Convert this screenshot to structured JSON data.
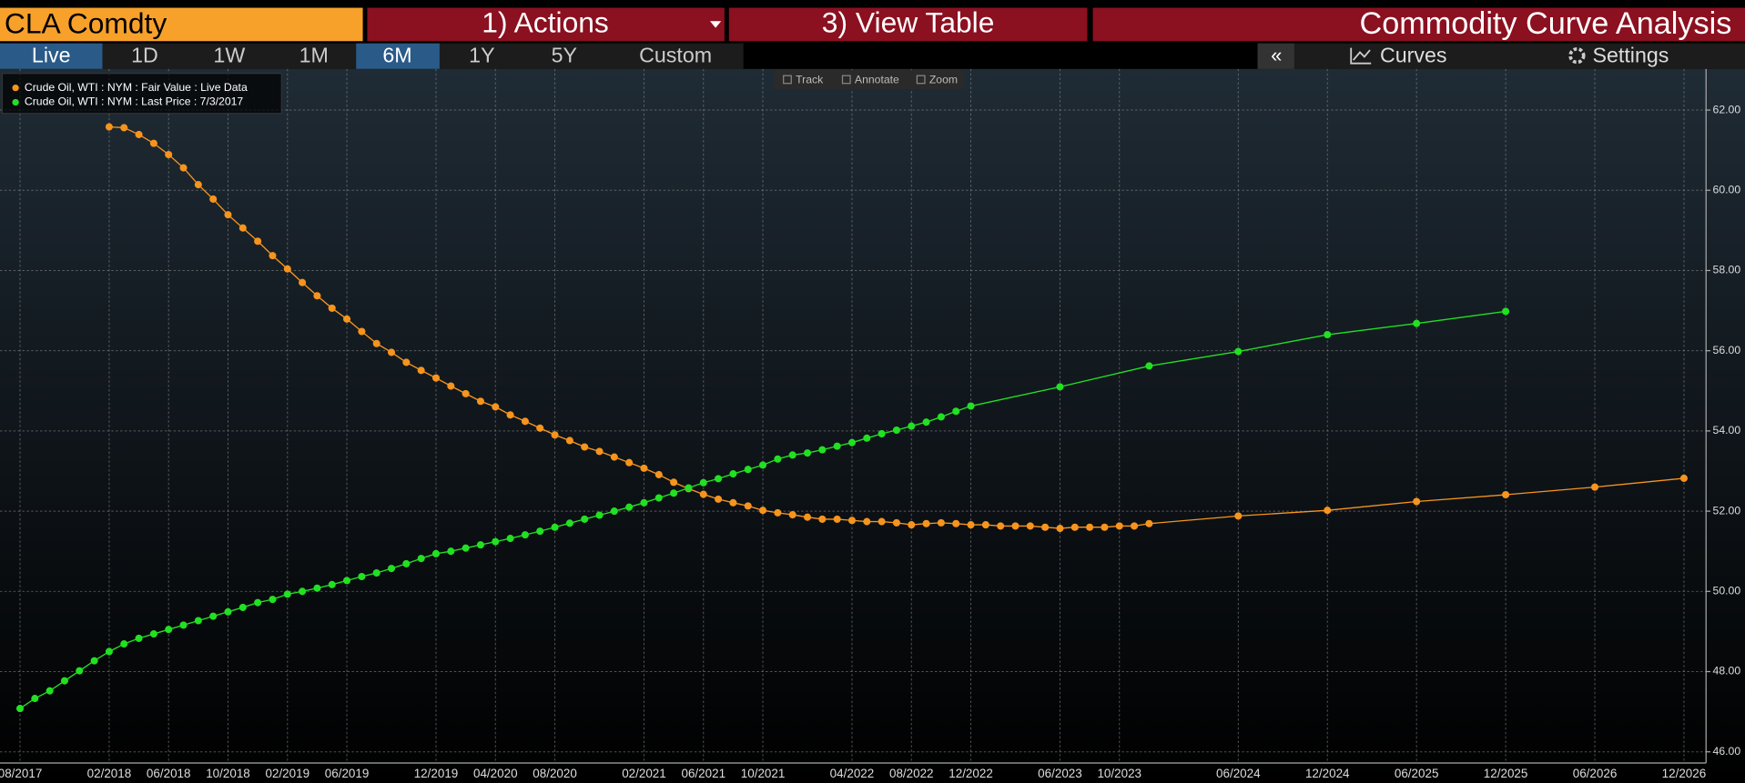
{
  "header": {
    "security": "CLA Comdty",
    "actions": "1) Actions",
    "view_table": "3) View Table",
    "title": "Commodity Curve Analysis"
  },
  "toolbar": {
    "periods": [
      "Live",
      "1D",
      "1W",
      "1M",
      "6M",
      "1Y",
      "5Y",
      "Custom"
    ],
    "collapse": "«",
    "curves": "Curves",
    "settings": "Settings"
  },
  "chart_tools": [
    "Track",
    "Annotate",
    "Zoom"
  ],
  "chart_data": {
    "type": "line",
    "legend": "top-left",
    "grid": true,
    "xlim": [
      "2017-07",
      "2027-01"
    ],
    "ylim": [
      45.6,
      63.0
    ],
    "yticks": [
      {
        "value": 46,
        "label": "46.00"
      },
      {
        "value": 48,
        "label": "48.00"
      },
      {
        "value": 50,
        "label": "50.00"
      },
      {
        "value": 52,
        "label": "52.00"
      },
      {
        "value": 54,
        "label": "54.00"
      },
      {
        "value": 56,
        "label": "56.00"
      },
      {
        "value": 58,
        "label": "58.00"
      },
      {
        "value": 60,
        "label": "60.00"
      },
      {
        "value": 62,
        "label": "62.00"
      }
    ],
    "xticks": [
      {
        "value": "2017-08",
        "label": "08/2017"
      },
      {
        "value": "2018-02",
        "label": "02/2018"
      },
      {
        "value": "2018-06",
        "label": "06/2018"
      },
      {
        "value": "2018-10",
        "label": "10/2018"
      },
      {
        "value": "2019-02",
        "label": "02/2019"
      },
      {
        "value": "2019-06",
        "label": "06/2019"
      },
      {
        "value": "2019-12",
        "label": "12/2019"
      },
      {
        "value": "2020-04",
        "label": "04/2020"
      },
      {
        "value": "2020-08",
        "label": "08/2020"
      },
      {
        "value": "2021-02",
        "label": "02/2021"
      },
      {
        "value": "2021-06",
        "label": "06/2021"
      },
      {
        "value": "2021-10",
        "label": "10/2021"
      },
      {
        "value": "2022-04",
        "label": "04/2022"
      },
      {
        "value": "2022-08",
        "label": "08/2022"
      },
      {
        "value": "2022-12",
        "label": "12/2022"
      },
      {
        "value": "2023-06",
        "label": "06/2023"
      },
      {
        "value": "2023-10",
        "label": "10/2023"
      },
      {
        "value": "2024-06",
        "label": "06/2024"
      },
      {
        "value": "2024-12",
        "label": "12/2024"
      },
      {
        "value": "2025-06",
        "label": "06/2025"
      },
      {
        "value": "2025-12",
        "label": "12/2025"
      },
      {
        "value": "2026-06",
        "label": "06/2026"
      },
      {
        "value": "2026-12",
        "label": "12/2026"
      }
    ],
    "series": [
      {
        "name": "Crude Oil, WTI : NYM : Fair Value : Live Data",
        "color": "#f7941d",
        "x": [
          "2018-02",
          "2018-03",
          "2018-04",
          "2018-05",
          "2018-06",
          "2018-07",
          "2018-08",
          "2018-09",
          "2018-10",
          "2018-11",
          "2018-12",
          "2019-01",
          "2019-02",
          "2019-03",
          "2019-04",
          "2019-05",
          "2019-06",
          "2019-07",
          "2019-08",
          "2019-09",
          "2019-10",
          "2019-11",
          "2019-12",
          "2020-01",
          "2020-02",
          "2020-03",
          "2020-04",
          "2020-05",
          "2020-06",
          "2020-07",
          "2020-08",
          "2020-09",
          "2020-10",
          "2020-11",
          "2020-12",
          "2021-01",
          "2021-02",
          "2021-03",
          "2021-04",
          "2021-05",
          "2021-06",
          "2021-07",
          "2021-08",
          "2021-09",
          "2021-10",
          "2021-11",
          "2021-12",
          "2022-01",
          "2022-02",
          "2022-03",
          "2022-04",
          "2022-05",
          "2022-06",
          "2022-07",
          "2022-08",
          "2022-09",
          "2022-10",
          "2022-11",
          "2022-12",
          "2023-01",
          "2023-02",
          "2023-03",
          "2023-04",
          "2023-05",
          "2023-06",
          "2023-07",
          "2023-08",
          "2023-09",
          "2023-10",
          "2023-11",
          "2023-12",
          "2024-06",
          "2024-12",
          "2025-06",
          "2025-12",
          "2026-06",
          "2026-12"
        ],
        "values": [
          61.58,
          61.56,
          61.39,
          61.17,
          60.89,
          60.56,
          60.14,
          59.78,
          59.39,
          59.06,
          58.73,
          58.37,
          58.04,
          57.7,
          57.37,
          57.06,
          56.79,
          56.48,
          56.18,
          55.96,
          55.71,
          55.51,
          55.32,
          55.12,
          54.93,
          54.74,
          54.6,
          54.4,
          54.24,
          54.07,
          53.9,
          53.76,
          53.6,
          53.49,
          53.35,
          53.21,
          53.07,
          52.91,
          52.72,
          52.56,
          52.42,
          52.3,
          52.21,
          52.13,
          52.02,
          51.96,
          51.91,
          51.85,
          51.8,
          51.8,
          51.77,
          51.74,
          51.74,
          51.71,
          51.66,
          51.69,
          51.71,
          51.69,
          51.66,
          51.66,
          51.63,
          51.63,
          51.63,
          51.6,
          51.57,
          51.6,
          51.6,
          51.6,
          51.63,
          51.63,
          51.69,
          51.88,
          52.02,
          52.24,
          52.41,
          52.6,
          52.82
        ]
      },
      {
        "name": "Crude Oil, WTI : NYM : Last Price : 7/3/2017",
        "color": "#22e022",
        "x": [
          "2017-08",
          "2017-09",
          "2017-10",
          "2017-11",
          "2017-12",
          "2018-01",
          "2018-02",
          "2018-03",
          "2018-04",
          "2018-05",
          "2018-06",
          "2018-07",
          "2018-08",
          "2018-09",
          "2018-10",
          "2018-11",
          "2018-12",
          "2019-01",
          "2019-02",
          "2019-03",
          "2019-04",
          "2019-05",
          "2019-06",
          "2019-07",
          "2019-08",
          "2019-09",
          "2019-10",
          "2019-11",
          "2019-12",
          "2020-01",
          "2020-02",
          "2020-03",
          "2020-04",
          "2020-05",
          "2020-06",
          "2020-07",
          "2020-08",
          "2020-09",
          "2020-10",
          "2020-11",
          "2020-12",
          "2021-01",
          "2021-02",
          "2021-03",
          "2021-04",
          "2021-05",
          "2021-06",
          "2021-07",
          "2021-08",
          "2021-09",
          "2021-10",
          "2021-11",
          "2021-12",
          "2022-01",
          "2022-02",
          "2022-03",
          "2022-04",
          "2022-05",
          "2022-06",
          "2022-07",
          "2022-08",
          "2022-09",
          "2022-10",
          "2022-11",
          "2022-12",
          "2023-06",
          "2023-12",
          "2024-06",
          "2024-12",
          "2025-06",
          "2025-12"
        ],
        "values": [
          47.08,
          47.33,
          47.52,
          47.77,
          48.02,
          48.27,
          48.5,
          48.69,
          48.83,
          48.94,
          49.05,
          49.16,
          49.27,
          49.38,
          49.49,
          49.6,
          49.72,
          49.8,
          49.93,
          50.0,
          50.08,
          50.17,
          50.27,
          50.37,
          50.46,
          50.57,
          50.69,
          50.82,
          50.94,
          51.0,
          51.08,
          51.16,
          51.24,
          51.32,
          51.41,
          51.5,
          51.6,
          51.7,
          51.8,
          51.9,
          52.0,
          52.1,
          52.21,
          52.33,
          52.45,
          52.58,
          52.71,
          52.81,
          52.93,
          53.04,
          53.15,
          53.3,
          53.4,
          53.45,
          53.53,
          53.62,
          53.71,
          53.82,
          53.93,
          54.02,
          54.12,
          54.22,
          54.35,
          54.49,
          54.62,
          55.1,
          55.62,
          55.98,
          56.4,
          56.68,
          56.98
        ]
      }
    ]
  }
}
